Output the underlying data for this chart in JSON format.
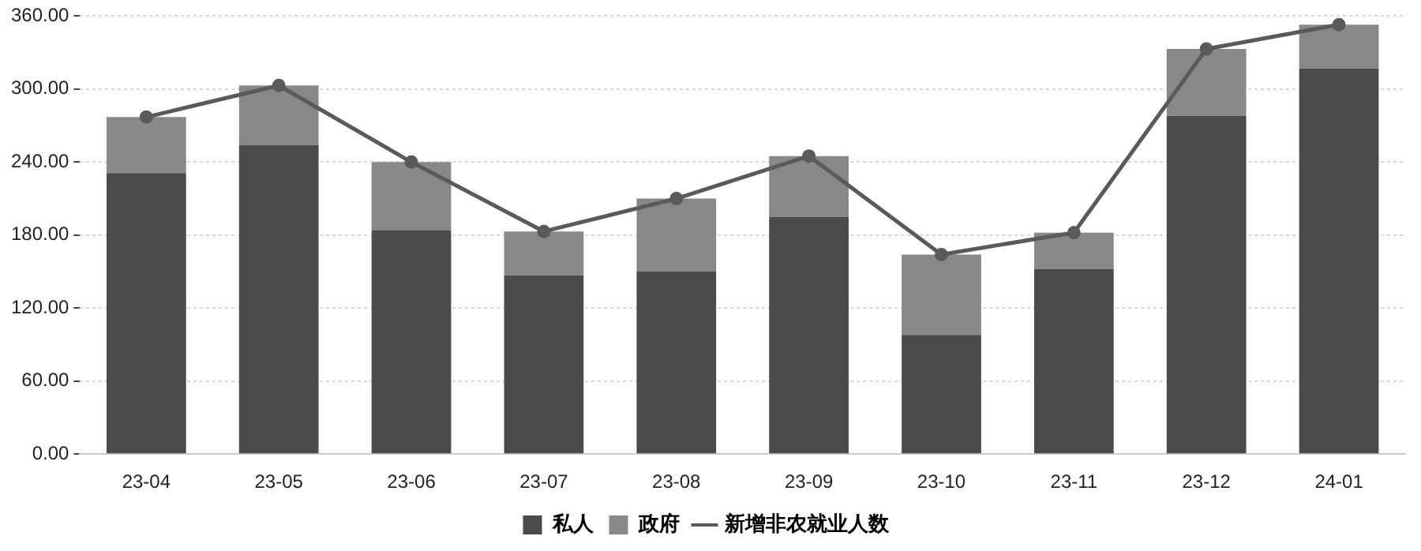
{
  "chart_data": {
    "type": "bar",
    "stacked": true,
    "categories": [
      "23-04",
      "23-05",
      "23-06",
      "23-07",
      "23-08",
      "23-09",
      "23-10",
      "23-11",
      "23-12",
      "24-01"
    ],
    "series": [
      {
        "name": "私人",
        "color": "#4a4a4a",
        "values": [
          231,
          254,
          184,
          147,
          150,
          195,
          98,
          152,
          278,
          317
        ]
      },
      {
        "name": "政府",
        "color": "#888888",
        "values": [
          46,
          49,
          56,
          36,
          60,
          50,
          66,
          30,
          55,
          36
        ]
      },
      {
        "name": "新增非农就业人数",
        "type": "line",
        "color": "#5a5a5a",
        "marker": "circle",
        "values": [
          277,
          303,
          240,
          183,
          210,
          245,
          164,
          182,
          333,
          353
        ]
      }
    ],
    "ylim": [
      0,
      360
    ],
    "yticks": [
      {
        "value": 0,
        "label": "0.00"
      },
      {
        "value": 60,
        "label": "60.00"
      },
      {
        "value": 120,
        "label": "120.00"
      },
      {
        "value": 180,
        "label": "180.00"
      },
      {
        "value": 240,
        "label": "240.00"
      },
      {
        "value": 300,
        "label": "300.00"
      },
      {
        "value": 360,
        "label": "360.00"
      }
    ],
    "grid": "y",
    "legend": "bottom"
  }
}
